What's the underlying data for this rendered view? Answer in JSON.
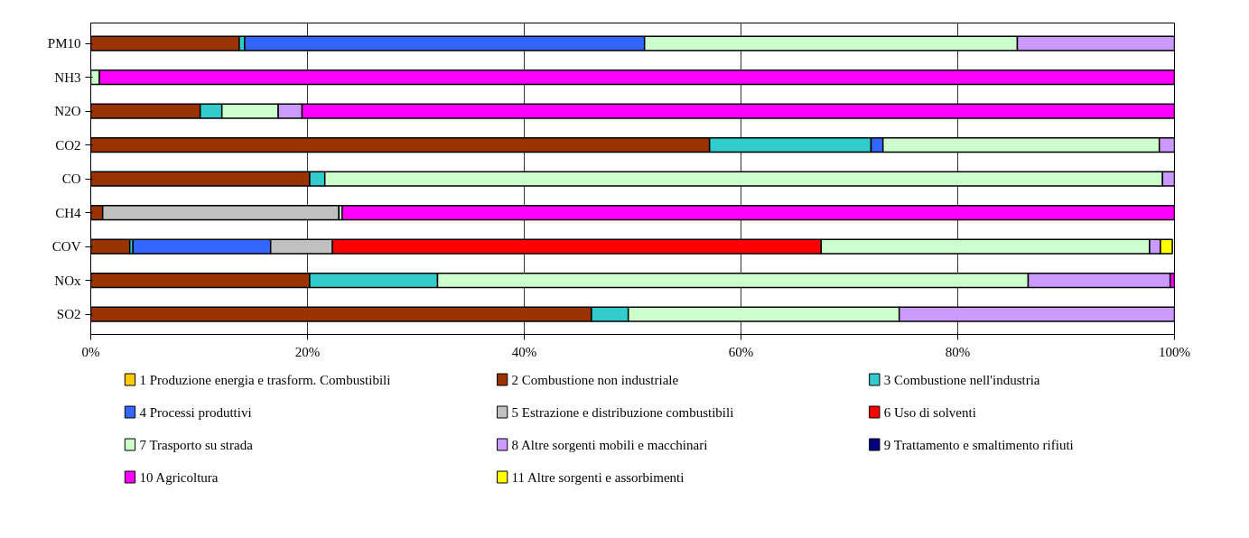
{
  "chart_data": {
    "type": "bar",
    "orientation": "horizontal",
    "stacked": true,
    "categories": [
      "PM10",
      "NH3",
      "N2O",
      "CO2",
      "CO",
      "CH4",
      "COV",
      "NOx",
      "SO2"
    ],
    "series": [
      {
        "name": "1 Produzione energia e trasform. Combustibili",
        "color": "#ffcc00",
        "values": [
          null,
          null,
          null,
          null,
          null,
          null,
          null,
          null,
          null
        ]
      },
      {
        "name": "2 Combustione non industriale",
        "color": "#993300",
        "values": [
          13.7,
          null,
          10.1,
          57.1,
          20.2,
          1.1,
          3.6,
          20.2,
          46.2
        ]
      },
      {
        "name": "3 Combustione nell'industria",
        "color": "#33cccc",
        "values": [
          0.5,
          null,
          2.0,
          14.9,
          1.4,
          null,
          0.3,
          11.8,
          3.4
        ]
      },
      {
        "name": "4 Processi produttivi",
        "color": "#3366ff",
        "values": [
          36.9,
          null,
          null,
          1.1,
          null,
          null,
          12.7,
          null,
          null
        ]
      },
      {
        "name": "5 Estrazione e distribuzione combustibili",
        "color": "#c0c0c0",
        "values": [
          null,
          null,
          null,
          null,
          null,
          21.8,
          5.7,
          null,
          null
        ]
      },
      {
        "name": "6 Uso di solventi",
        "color": "#ff0000",
        "values": [
          null,
          null,
          null,
          null,
          null,
          null,
          45.1,
          null,
          null
        ]
      },
      {
        "name": "7 Trasporto su strada",
        "color": "#ccffcc",
        "values": [
          34.4,
          0.8,
          5.2,
          25.5,
          77.3,
          0.3,
          30.3,
          54.5,
          25.0
        ]
      },
      {
        "name": "8 Altre sorgenti mobili e macchinari",
        "color": "#cc99ff",
        "values": [
          14.8,
          null,
          2.2,
          1.4,
          1.1,
          null,
          1.0,
          13.1,
          25.4
        ]
      },
      {
        "name": "9 Trattamento e smaltimento rifiuti",
        "color": "#000080",
        "values": [
          null,
          null,
          null,
          null,
          null,
          null,
          null,
          null,
          null
        ]
      },
      {
        "name": "10 Agricoltura",
        "color": "#ff00ff",
        "values": [
          null,
          99.2,
          80.5,
          null,
          null,
          76.8,
          null,
          0.4,
          null
        ]
      },
      {
        "name": "11 Altre sorgenti e assorbimenti",
        "color": "#ffff00",
        "values": [
          null,
          null,
          null,
          null,
          null,
          null,
          1.1,
          null,
          null
        ]
      }
    ],
    "xlim": [
      0,
      100
    ],
    "xticks": [
      {
        "value": 0,
        "label": "0%"
      },
      {
        "value": 20,
        "label": "20%"
      },
      {
        "value": 40,
        "label": "40%"
      },
      {
        "value": 60,
        "label": "60%"
      },
      {
        "value": 80,
        "label": "80%"
      },
      {
        "value": 100,
        "label": "100%"
      }
    ],
    "grid": "x",
    "legend": "bottom"
  }
}
